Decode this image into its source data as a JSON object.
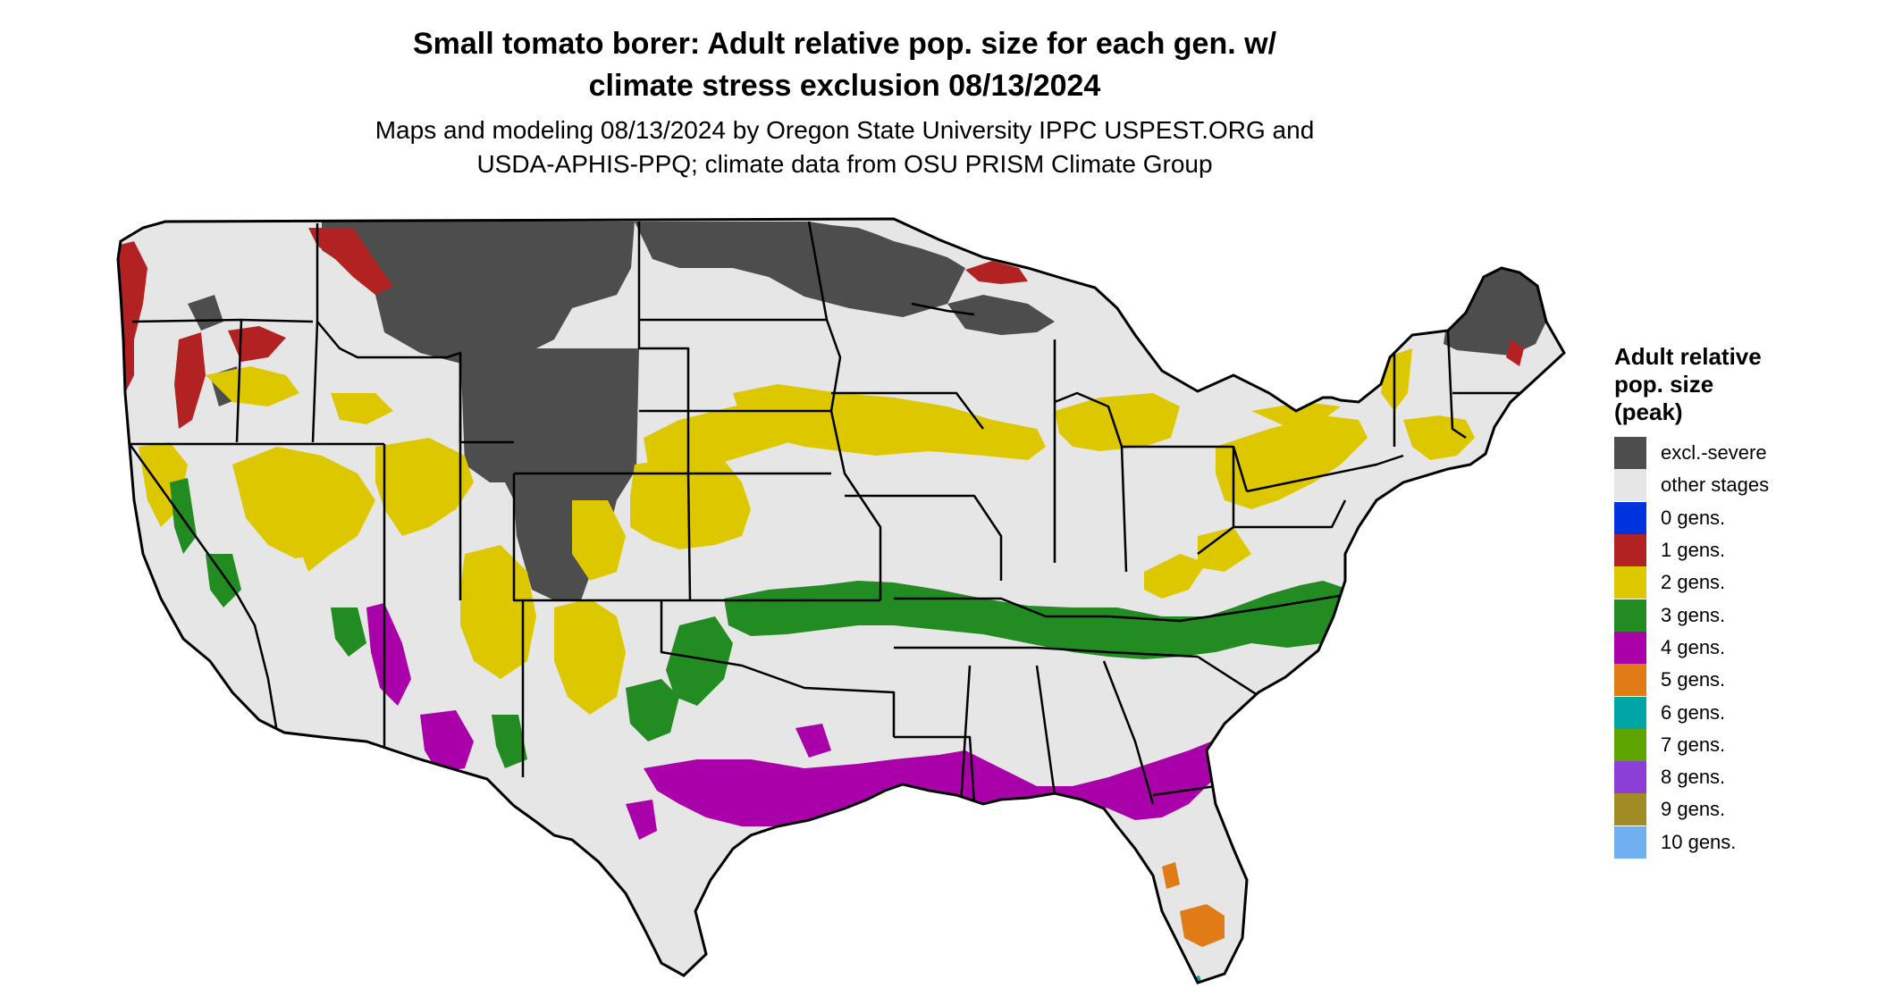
{
  "title_line1": "Small tomato borer: Adult relative pop. size for each gen. w/",
  "title_line2": "climate stress exclusion 08/13/2024",
  "subtitle_line1": "Maps and modeling 08/13/2024 by Oregon State University IPPC USPEST.ORG and",
  "subtitle_line2": "USDA-APHIS-PPQ; climate data from OSU PRISM Climate Group",
  "legend": {
    "title_line1": "Adult relative",
    "title_line2": "pop. size",
    "title_line3": "(peak)",
    "items": [
      {
        "label": "excl.-severe",
        "color": "#4d4d4d"
      },
      {
        "label": "other stages",
        "color": "#e6e6e6"
      },
      {
        "label": "0 gens.",
        "color": "#0033dd"
      },
      {
        "label": "1 gens.",
        "color": "#b22222"
      },
      {
        "label": "2 gens.",
        "color": "#ddc800"
      },
      {
        "label": "3 gens.",
        "color": "#228b22"
      },
      {
        "label": "4 gens.",
        "color": "#aa00aa"
      },
      {
        "label": "5 gens.",
        "color": "#e07b16"
      },
      {
        "label": "6 gens.",
        "color": "#00a6a6"
      },
      {
        "label": "7 gens.",
        "color": "#5ea500"
      },
      {
        "label": "8 gens.",
        "color": "#8b3fd6"
      },
      {
        "label": "9 gens.",
        "color": "#a18b24"
      },
      {
        "label": "10 gens.",
        "color": "#70b0f0"
      }
    ]
  }
}
